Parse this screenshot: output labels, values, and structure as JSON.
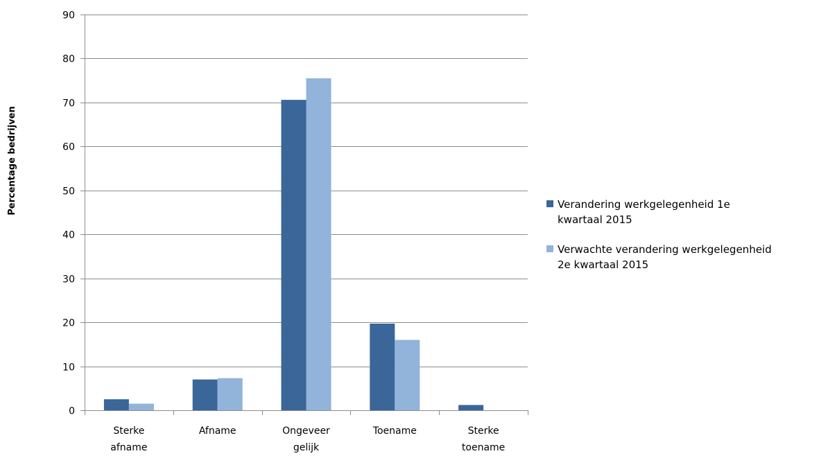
{
  "chart_data": {
    "type": "bar",
    "title": "",
    "xlabel": "",
    "ylabel": "Percentage bedrijven",
    "ylim": [
      0,
      90
    ],
    "yticks": [
      0,
      10,
      20,
      30,
      40,
      50,
      60,
      70,
      80,
      90
    ],
    "grid": true,
    "legend_position": "right",
    "categories": [
      [
        "Sterke",
        "afname"
      ],
      [
        "Afname"
      ],
      [
        "Ongeveer",
        "gelijk"
      ],
      [
        "Toename"
      ],
      [
        "Sterke",
        "toename"
      ]
    ],
    "series": [
      {
        "name": [
          "Verandering werkgelegenheid 1e",
          "kwartaal 2015"
        ],
        "color": "#3A6699",
        "values": [
          2.5,
          7.0,
          70.6,
          19.7,
          1.2
        ]
      },
      {
        "name": [
          "Verwachte verandering werkgelegenheid",
          "2e kwartaal 2015"
        ],
        "color": "#92B3DA",
        "values": [
          1.5,
          7.3,
          75.5,
          16.0,
          0
        ]
      }
    ]
  }
}
